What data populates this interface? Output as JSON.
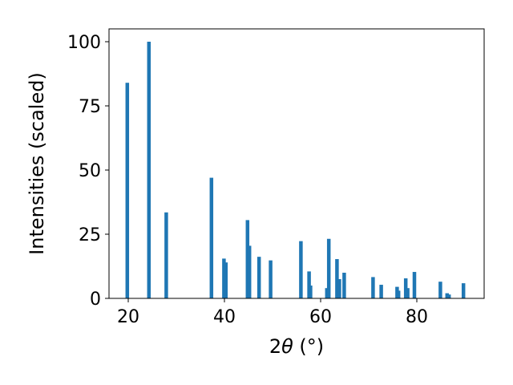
{
  "chart_data": {
    "type": "bar",
    "title": "",
    "xlabel_main": "2",
    "xlabel_symbol": "θ",
    "xlabel_unit": " (°)",
    "ylabel": "Intensities (scaled)",
    "xlim": [
      16,
      94
    ],
    "ylim": [
      0,
      105
    ],
    "x_ticks": [
      20,
      40,
      60,
      80
    ],
    "y_ticks": [
      0,
      25,
      50,
      75,
      100
    ],
    "bar_color": "#1f77b4",
    "grid": false,
    "series": [
      {
        "x": [
          19.8,
          24.3,
          27.9,
          37.3,
          39.9,
          40.3,
          44.8,
          45.2,
          47.2,
          49.6,
          55.9,
          57.6,
          57.9,
          61.3,
          61.7,
          63.4,
          63.9,
          64.9,
          70.9,
          72.6,
          75.9,
          76.2,
          77.7,
          78.1,
          79.5,
          84.9,
          86.3,
          86.7,
          89.7
        ],
        "values": [
          84,
          100,
          33.5,
          47,
          15.5,
          14,
          30.5,
          20.5,
          16.2,
          14.8,
          22.3,
          10.5,
          5,
          4,
          23.2,
          15.3,
          7.5,
          10,
          8.3,
          5.3,
          4.5,
          3,
          7.8,
          4,
          10.3,
          6.5,
          2,
          1.5,
          5.9
        ]
      }
    ]
  }
}
